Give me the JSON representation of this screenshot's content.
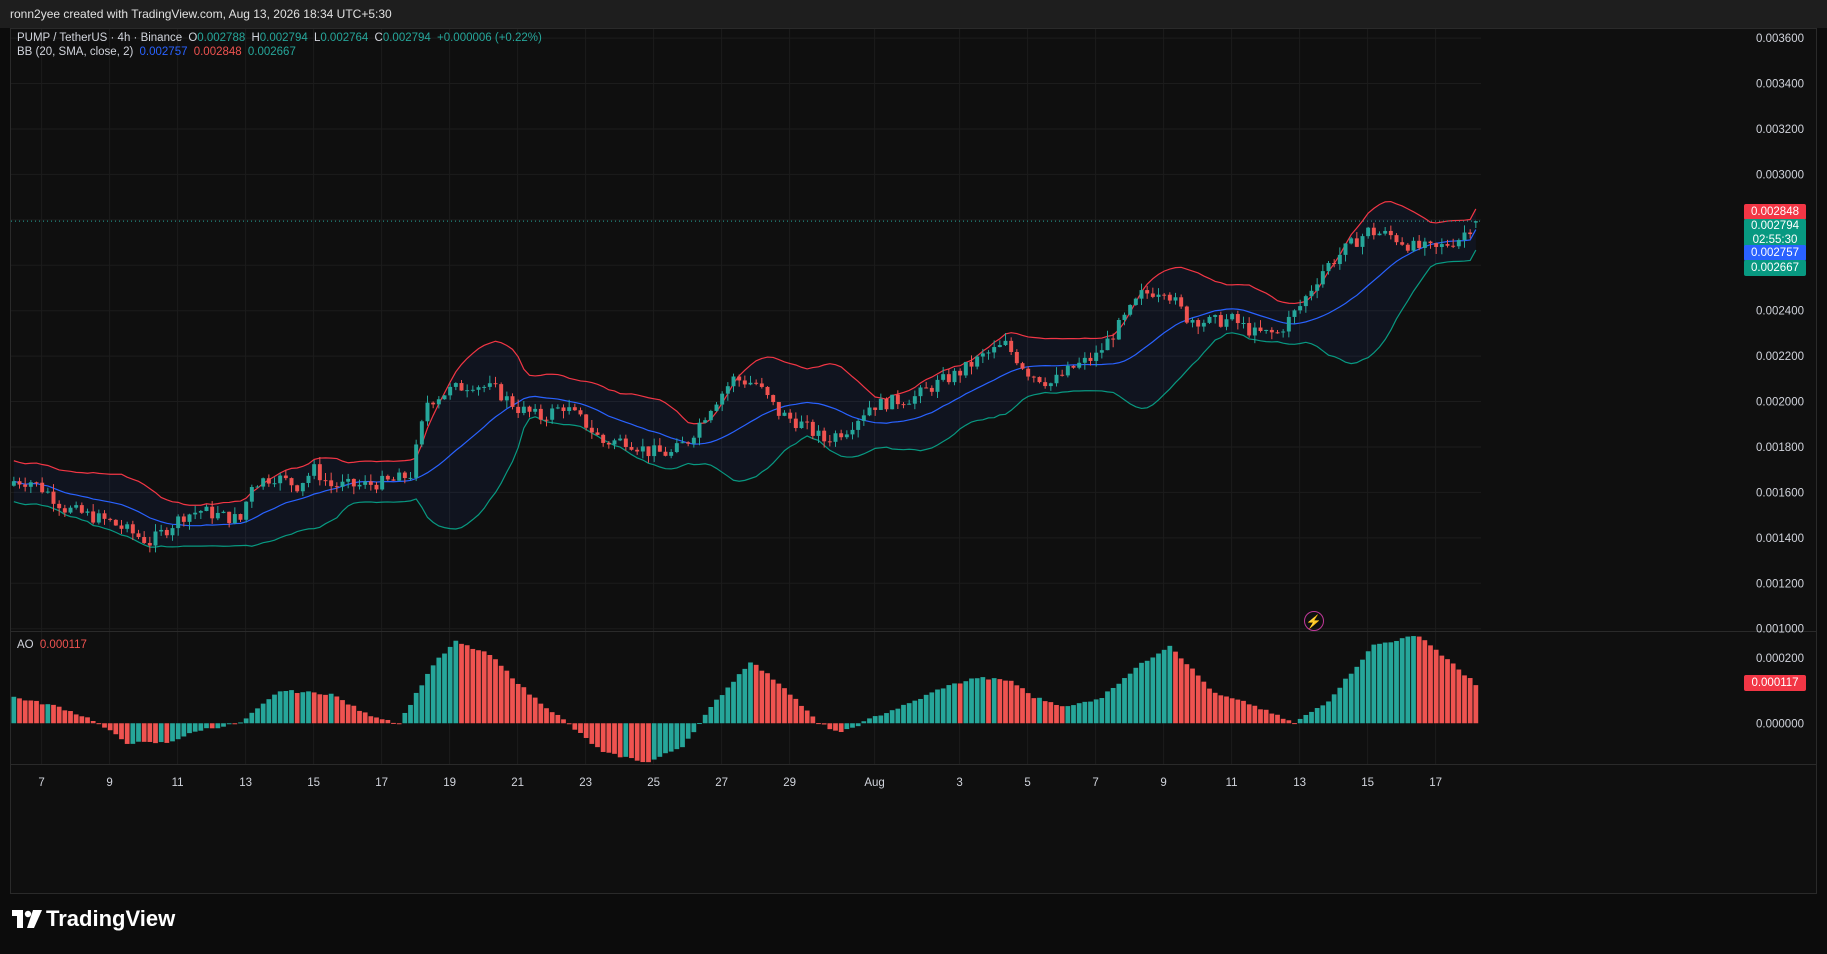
{
  "topbar": {
    "text": "ronn2yee created with TradingView.com, Aug 13, 2026 18:34 UTC+5:30"
  },
  "legend": {
    "symbol": "PUMP / TetherUS · 4h · Binance",
    "o_label": "O",
    "o_value": "0.002788",
    "h_label": "H",
    "h_value": "0.002794",
    "l_label": "L",
    "l_value": "0.002764",
    "c_label": "C",
    "c_value": "0.002794",
    "change": "+0.000006 (+0.22%)",
    "bb_label": "BB (20, SMA, close, 2)",
    "bb_basis": "0.002757",
    "bb_upper": "0.002848",
    "bb_lower": "0.002667"
  },
  "ao_legend": {
    "label": "AO",
    "value": "0.000117"
  },
  "price_tags": {
    "upper": "0.002848",
    "last": "0.002794",
    "countdown": "02:55:30",
    "basis": "0.002757",
    "lower": "0.002667",
    "ao": "0.000117"
  },
  "colors": {
    "up": "#26a69a",
    "down": "#ef5350",
    "basis": "#2962ff",
    "upper_band": "#f23645",
    "lower_band": "#089981",
    "band_fill": "#2962ff"
  },
  "brand": {
    "name": "TradingView"
  },
  "icons": {
    "logo": "tradingview-logo-icon",
    "replay": "lightning-bolt-icon"
  },
  "chart_data": [
    {
      "type": "candlestick",
      "title": "PUMP / TetherUS · 4h · Binance",
      "ylim": [
        0.00099,
        0.00364
      ],
      "y_ticks": [
        "0.003600",
        "0.003400",
        "0.003200",
        "0.003000",
        "0.002800",
        "0.002600",
        "0.002400",
        "0.002200",
        "0.002000",
        "0.001800",
        "0.001600",
        "0.001400",
        "0.001200",
        "0.001000"
      ],
      "y_tick_values": [
        0.0036,
        0.0034,
        0.0032,
        0.003,
        0.0028,
        0.0026,
        0.0024,
        0.0022,
        0.002,
        0.0018,
        0.0016,
        0.0014,
        0.0012,
        0.001
      ],
      "x_ticks": [
        "7",
        "9",
        "11",
        "13",
        "15",
        "17",
        "19",
        "21",
        "23",
        "25",
        "27",
        "29",
        "Aug",
        "3",
        "5",
        "7",
        "9",
        "11",
        "13",
        "15",
        "17"
      ],
      "x_tick_days": [
        0,
        2,
        4,
        6,
        8,
        10,
        12,
        14,
        16,
        18,
        20,
        22,
        24.5,
        27,
        29,
        31,
        33,
        35,
        37,
        39,
        41
      ],
      "grid": true,
      "bars_per_day": 6,
      "start_day": -0.9,
      "close_path": [
        [
          0,
          0.00165
        ],
        [
          3,
          0.00165
        ],
        [
          6,
          0.0016
        ],
        [
          9,
          0.00153
        ],
        [
          13,
          0.0015
        ],
        [
          17,
          0.00147
        ],
        [
          21,
          0.00142
        ],
        [
          24,
          0.00138
        ],
        [
          27,
          0.00144
        ],
        [
          30,
          0.0015
        ],
        [
          33,
          0.00152
        ],
        [
          36,
          0.0015
        ],
        [
          40,
          0.00148
        ],
        [
          42,
          0.00164
        ],
        [
          46,
          0.00167
        ],
        [
          50,
          0.00163
        ],
        [
          53,
          0.0017
        ],
        [
          56,
          0.00163
        ],
        [
          61,
          0.00163
        ],
        [
          67,
          0.00165
        ],
        [
          70,
          0.00168
        ],
        [
          73,
          0.002
        ],
        [
          77,
          0.00205
        ],
        [
          81,
          0.00208
        ],
        [
          85,
          0.00205
        ],
        [
          89,
          0.00197
        ],
        [
          93,
          0.00193
        ],
        [
          97,
          0.00198
        ],
        [
          101,
          0.0019
        ],
        [
          104,
          0.00182
        ],
        [
          108,
          0.00183
        ],
        [
          112,
          0.00178
        ],
        [
          116,
          0.00177
        ],
        [
          119,
          0.00183
        ],
        [
          123,
          0.00198
        ],
        [
          127,
          0.0021
        ],
        [
          131,
          0.00208
        ],
        [
          135,
          0.00195
        ],
        [
          139,
          0.0019
        ],
        [
          143,
          0.00183
        ],
        [
          147,
          0.00188
        ],
        [
          151,
          0.00198
        ],
        [
          155,
          0.002
        ],
        [
          159,
          0.00202
        ],
        [
          163,
          0.00208
        ],
        [
          167,
          0.00213
        ],
        [
          171,
          0.0022
        ],
        [
          175,
          0.00225
        ],
        [
          179,
          0.00213
        ],
        [
          183,
          0.00208
        ],
        [
          187,
          0.00215
        ],
        [
          191,
          0.0022
        ],
        [
          195,
          0.00233
        ],
        [
          199,
          0.00247
        ],
        [
          203,
          0.0025
        ],
        [
          207,
          0.00237
        ],
        [
          211,
          0.00235
        ],
        [
          215,
          0.00236
        ],
        [
          219,
          0.0023
        ],
        [
          223,
          0.0023
        ],
        [
          227,
          0.00242
        ],
        [
          231,
          0.00258
        ],
        [
          235,
          0.00267
        ],
        [
          239,
          0.00275
        ],
        [
          243,
          0.00273
        ],
        [
          247,
          0.00268
        ],
        [
          251,
          0.00267
        ],
        [
          255,
          0.00272
        ],
        [
          258,
          0.00279
        ]
      ],
      "bollinger": {
        "period": 20,
        "mult": 2,
        "basis": 0.002757,
        "upper": 0.002848,
        "lower": 0.002667
      },
      "last": {
        "open": 0.002788,
        "high": 0.002794,
        "low": 0.002764,
        "close": 0.002794
      }
    },
    {
      "type": "histogram",
      "title": "AO",
      "ylim": [
        -0.000125,
        0.00028
      ],
      "y_ticks": [
        "0.000200",
        "0.000000"
      ],
      "y_tick_values": [
        0.0002,
        0.0
      ],
      "ao_path": [
        [
          0,
          8e-05
        ],
        [
          8,
          5e-05
        ],
        [
          14,
          1e-05
        ],
        [
          20,
          -6e-05
        ],
        [
          27,
          -6e-05
        ],
        [
          33,
          -2e-05
        ],
        [
          40,
          0.0
        ],
        [
          47,
          0.0001
        ],
        [
          56,
          9e-05
        ],
        [
          62,
          3e-05
        ],
        [
          68,
          0.0
        ],
        [
          74,
          0.00018
        ],
        [
          78,
          0.00025
        ],
        [
          84,
          0.00021
        ],
        [
          91,
          9e-05
        ],
        [
          97,
          1e-05
        ],
        [
          104,
          -9e-05
        ],
        [
          112,
          -0.00012
        ],
        [
          118,
          -7e-05
        ],
        [
          124,
          7e-05
        ],
        [
          130,
          0.00019
        ],
        [
          136,
          0.00011
        ],
        [
          142,
          0.0
        ],
        [
          146,
          -3e-05
        ],
        [
          152,
          2e-05
        ],
        [
          158,
          6e-05
        ],
        [
          164,
          0.00011
        ],
        [
          170,
          0.00014
        ],
        [
          176,
          0.00013
        ],
        [
          180,
          8e-05
        ],
        [
          186,
          5e-05
        ],
        [
          192,
          8e-05
        ],
        [
          198,
          0.00017
        ],
        [
          204,
          0.00024
        ],
        [
          212,
          9e-05
        ],
        [
          218,
          6e-05
        ],
        [
          226,
          0.0
        ],
        [
          232,
          7e-05
        ],
        [
          240,
          0.00024
        ],
        [
          248,
          0.00027
        ],
        [
          256,
          0.00015
        ],
        [
          259,
          0.000117
        ]
      ],
      "last": 0.000117
    }
  ]
}
